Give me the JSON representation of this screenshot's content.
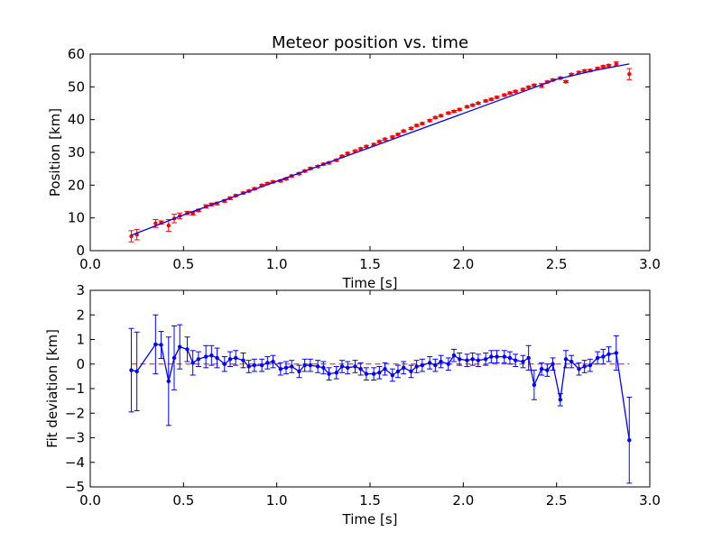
{
  "title": "Meteor position vs. time",
  "colors": {
    "data": "#ff0000",
    "fit": "#0000ff",
    "residual": "#0000ff",
    "zero_line": "#ff0000"
  },
  "chart_data": [
    {
      "type": "scatter",
      "title": "Meteor position vs. time",
      "xlabel": "Time [s]",
      "ylabel": "Position [km]",
      "xlim": [
        0.0,
        3.0
      ],
      "ylim": [
        0,
        60
      ],
      "xticks": [
        "0.0",
        "0.5",
        "1.0",
        "1.5",
        "2.0",
        "2.5",
        "3.0"
      ],
      "yticks": [
        "0",
        "10",
        "20",
        "30",
        "40",
        "50",
        "60"
      ],
      "grid": false,
      "series": [
        {
          "style": "red points with error bars",
          "x": [
            0.22,
            0.25,
            0.35,
            0.38,
            0.42,
            0.45,
            0.48,
            0.52,
            0.55,
            0.58,
            0.62,
            0.65,
            0.68,
            0.72,
            0.75,
            0.78,
            0.82,
            0.85,
            0.88,
            0.92,
            0.95,
            0.98,
            1.02,
            1.05,
            1.08,
            1.12,
            1.15,
            1.18,
            1.22,
            1.25,
            1.28,
            1.32,
            1.35,
            1.38,
            1.42,
            1.45,
            1.48,
            1.52,
            1.55,
            1.58,
            1.62,
            1.65,
            1.68,
            1.72,
            1.75,
            1.78,
            1.82,
            1.85,
            1.88,
            1.92,
            1.95,
            1.98,
            2.02,
            2.05,
            2.08,
            2.12,
            2.15,
            2.18,
            2.22,
            2.25,
            2.28,
            2.32,
            2.35,
            2.38,
            2.42,
            2.45,
            2.48,
            2.52,
            2.55,
            2.58,
            2.62,
            2.65,
            2.68,
            2.72,
            2.75,
            2.78,
            2.82,
            2.89
          ],
          "y": [
            4.4,
            4.9,
            8.3,
            8.6,
            7.7,
            9.8,
            10.6,
            11.5,
            11.4,
            12.3,
            13.5,
            14.1,
            14.4,
            15.2,
            16.0,
            16.8,
            17.6,
            18.2,
            18.9,
            19.9,
            20.5,
            21.0,
            21.3,
            21.9,
            22.8,
            23.5,
            24.3,
            25.1,
            25.7,
            26.4,
            26.8,
            27.6,
            28.8,
            29.7,
            30.4,
            31.1,
            31.8,
            32.4,
            33.3,
            34.0,
            34.7,
            35.5,
            36.5,
            37.3,
            38.2,
            38.8,
            39.7,
            40.6,
            41.2,
            42.0,
            42.5,
            43.1,
            43.9,
            44.4,
            45.0,
            45.7,
            46.2,
            46.8,
            47.5,
            48.1,
            48.6,
            49.2,
            49.9,
            50.5,
            50.4,
            51.5,
            52.1,
            52.7,
            51.6,
            53.8,
            54.4,
            54.9,
            55.0,
            55.6,
            56.2,
            56.5,
            57.0,
            53.9
          ],
          "err": [
            1.7,
            1.6,
            1.2,
            0.5,
            1.8,
            1.3,
            0.9,
            0.5,
            0.5,
            0.3,
            0.5,
            0.4,
            0.4,
            0.4,
            0.4,
            0.3,
            0.3,
            0.3,
            0.3,
            0.3,
            0.3,
            0.3,
            0.3,
            0.3,
            0.3,
            0.3,
            0.3,
            0.3,
            0.3,
            0.3,
            0.3,
            0.3,
            0.3,
            0.3,
            0.3,
            0.3,
            0.3,
            0.3,
            0.3,
            0.3,
            0.3,
            0.3,
            0.3,
            0.3,
            0.3,
            0.3,
            0.3,
            0.3,
            0.3,
            0.3,
            0.3,
            0.3,
            0.3,
            0.3,
            0.3,
            0.3,
            0.3,
            0.3,
            0.3,
            0.3,
            0.3,
            0.3,
            0.3,
            0.3,
            0.6,
            0.3,
            0.3,
            0.3,
            0.3,
            0.3,
            0.3,
            0.3,
            0.3,
            0.3,
            0.3,
            0.3,
            0.6,
            1.7
          ]
        },
        {
          "style": "blue fit line",
          "x": [
            0.22,
            0.5,
            1.0,
            1.5,
            2.0,
            2.5,
            2.7,
            2.89
          ],
          "y": [
            4.7,
            10.9,
            21.2,
            31.5,
            41.9,
            52.3,
            55.0,
            57.0
          ]
        }
      ]
    },
    {
      "type": "line",
      "title": "",
      "xlabel": "Time [s]",
      "ylabel": "Fit deviation [km]",
      "xlim": [
        0.0,
        3.0
      ],
      "ylim": [
        -5,
        3
      ],
      "xticks": [
        "0.0",
        "0.5",
        "1.0",
        "1.5",
        "2.0",
        "2.5",
        "3.0"
      ],
      "yticks": [
        "3",
        "2",
        "1",
        "0",
        "−1",
        "−2",
        "−3",
        "−4",
        "−5"
      ],
      "grid": false,
      "series": [
        {
          "style": "blue line with point markers and error bars",
          "x": [
            0.22,
            0.25,
            0.35,
            0.38,
            0.42,
            0.45,
            0.48,
            0.52,
            0.55,
            0.58,
            0.62,
            0.65,
            0.68,
            0.72,
            0.75,
            0.78,
            0.82,
            0.85,
            0.88,
            0.92,
            0.95,
            0.98,
            1.02,
            1.05,
            1.08,
            1.12,
            1.15,
            1.18,
            1.22,
            1.25,
            1.28,
            1.32,
            1.35,
            1.38,
            1.42,
            1.45,
            1.48,
            1.52,
            1.55,
            1.58,
            1.62,
            1.65,
            1.68,
            1.72,
            1.75,
            1.78,
            1.82,
            1.85,
            1.88,
            1.92,
            1.95,
            1.98,
            2.02,
            2.05,
            2.08,
            2.12,
            2.15,
            2.18,
            2.22,
            2.25,
            2.28,
            2.32,
            2.35,
            2.38,
            2.42,
            2.45,
            2.48,
            2.52,
            2.55,
            2.58,
            2.62,
            2.65,
            2.68,
            2.72,
            2.75,
            2.78,
            2.82,
            2.89
          ],
          "y": [
            -0.25,
            -0.3,
            0.8,
            0.78,
            -0.7,
            0.25,
            0.7,
            0.6,
            0.05,
            0.2,
            0.3,
            0.35,
            0.25,
            0.0,
            0.2,
            0.25,
            0.15,
            -0.1,
            -0.05,
            -0.05,
            0.05,
            0.1,
            -0.2,
            -0.15,
            -0.1,
            -0.3,
            -0.05,
            -0.05,
            -0.1,
            -0.15,
            -0.4,
            -0.35,
            -0.1,
            -0.15,
            -0.1,
            -0.2,
            -0.4,
            -0.4,
            -0.35,
            -0.2,
            -0.45,
            -0.3,
            -0.15,
            -0.3,
            -0.1,
            -0.05,
            0.05,
            -0.05,
            0.1,
            0.0,
            0.35,
            0.2,
            0.15,
            0.2,
            0.15,
            0.2,
            0.3,
            0.3,
            0.3,
            0.25,
            0.15,
            0.1,
            0.25,
            -0.85,
            -0.2,
            -0.25,
            0.0,
            -1.45,
            0.2,
            0.1,
            -0.2,
            -0.1,
            -0.05,
            0.25,
            0.3,
            0.4,
            0.45,
            -3.1
          ],
          "err": [
            1.7,
            1.6,
            1.2,
            0.55,
            1.8,
            1.3,
            0.9,
            0.5,
            0.5,
            0.3,
            0.45,
            0.4,
            0.4,
            0.3,
            0.3,
            0.3,
            0.3,
            0.25,
            0.25,
            0.25,
            0.25,
            0.25,
            0.25,
            0.25,
            0.25,
            0.25,
            0.25,
            0.25,
            0.25,
            0.25,
            0.25,
            0.25,
            0.25,
            0.25,
            0.25,
            0.25,
            0.25,
            0.25,
            0.25,
            0.25,
            0.25,
            0.25,
            0.25,
            0.25,
            0.25,
            0.25,
            0.25,
            0.25,
            0.25,
            0.25,
            0.25,
            0.25,
            0.25,
            0.25,
            0.25,
            0.25,
            0.25,
            0.25,
            0.25,
            0.25,
            0.25,
            0.25,
            0.5,
            0.6,
            0.25,
            0.25,
            0.25,
            0.25,
            0.35,
            0.25,
            0.25,
            0.25,
            0.25,
            0.25,
            0.3,
            0.3,
            0.7,
            1.75
          ]
        },
        {
          "style": "red dashed zero line",
          "x": [
            0.22,
            2.89
          ],
          "y": [
            0,
            0
          ]
        }
      ]
    }
  ]
}
